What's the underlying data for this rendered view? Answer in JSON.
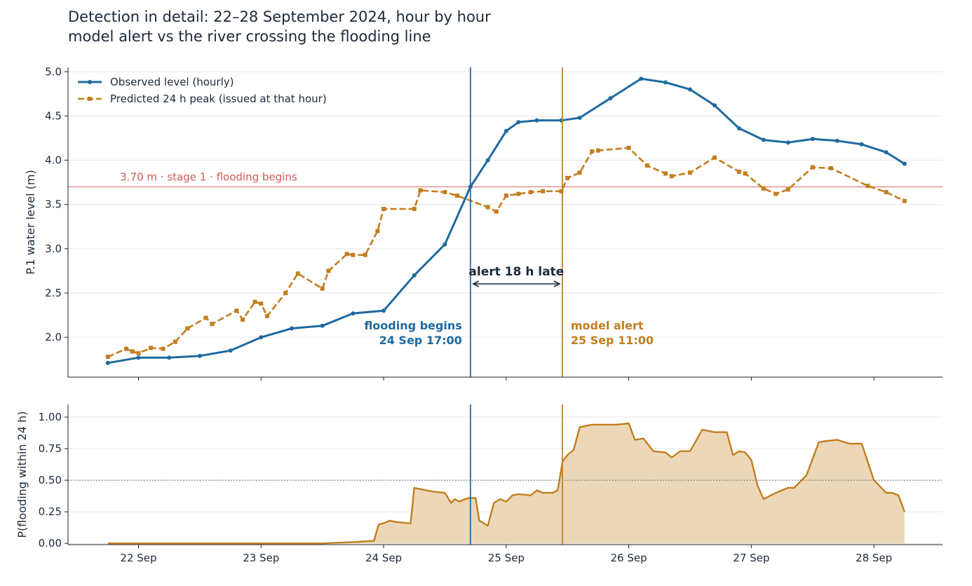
{
  "title_line1": "Detection in detail: 22–28 September 2024, hour by hour",
  "title_line2": "model alert vs the river crossing the flooding line",
  "colors": {
    "observed": "#1f6aa0",
    "predicted": "#c27e1e",
    "threshold": "#e3928f",
    "threshold_label": "#d05a55",
    "text": "#1b2a3a",
    "grid": "#e6e6e6",
    "prob_fill": "#ecd8b8"
  },
  "legend": {
    "observed_label": "Observed level (hourly)",
    "predicted_label": "Predicted 24 h peak (issued at that hour)"
  },
  "threshold": {
    "value": 3.7,
    "label": "3.70 m · stage 1 · flooding begins"
  },
  "events": {
    "flood_line1": "flooding begins",
    "flood_line2": "24 Sep 17:00",
    "flood_time": 2.708,
    "alert_line1": "model alert",
    "alert_line2": "25 Sep 11:00",
    "alert_time": 3.458,
    "gap_label": "alert 18 h late"
  },
  "prob_threshold": 0.5,
  "chart_data": [
    {
      "type": "line",
      "ylabel": "P.1 water level (m)",
      "xlabel": "",
      "ylim": [
        1.55,
        5.05
      ],
      "yticks": [
        "2.0",
        "2.5",
        "3.0",
        "3.5",
        "4.0",
        "4.5",
        "5.0"
      ],
      "xlim": [
        -0.575,
        6.56
      ],
      "xticks": [
        "22 Sep",
        "23 Sep",
        "24 Sep",
        "25 Sep",
        "26 Sep",
        "27 Sep",
        "28 Sep"
      ],
      "grid": "horizontal",
      "legend_position": "top-left",
      "series": [
        {
          "name": "Observed level (hourly)",
          "style": "solid line with circle markers",
          "x": [
            -0.25,
            0.0,
            0.25,
            0.5,
            0.75,
            1.0,
            1.25,
            1.5,
            1.75,
            2.0,
            2.25,
            2.5,
            2.708,
            2.85,
            3.0,
            3.1,
            3.25,
            3.45,
            3.6,
            3.85,
            4.1,
            4.3,
            4.5,
            4.7,
            4.9,
            5.1,
            5.3,
            5.5,
            5.7,
            5.9,
            6.1,
            6.25
          ],
          "y": [
            1.71,
            1.77,
            1.77,
            1.79,
            1.85,
            2.0,
            2.1,
            2.13,
            2.27,
            2.3,
            2.7,
            3.05,
            3.7,
            4.0,
            4.33,
            4.43,
            4.45,
            4.45,
            4.48,
            4.7,
            4.92,
            4.88,
            4.8,
            4.62,
            4.36,
            4.23,
            4.2,
            4.24,
            4.22,
            4.18,
            4.09,
            3.96
          ]
        },
        {
          "name": "Predicted 24 h peak (issued at that hour)",
          "style": "dashed line with square markers",
          "x": [
            -0.25,
            -0.1,
            -0.05,
            0.0,
            0.1,
            0.2,
            0.3,
            0.4,
            0.55,
            0.6,
            0.8,
            0.85,
            0.95,
            1.0,
            1.05,
            1.2,
            1.3,
            1.5,
            1.55,
            1.7,
            1.75,
            1.85,
            1.95,
            2.0,
            2.25,
            2.3,
            2.5,
            2.6,
            2.85,
            2.92,
            3.0,
            3.1,
            3.2,
            3.3,
            3.45,
            3.5,
            3.6,
            3.7,
            3.75,
            4.0,
            4.15,
            4.3,
            4.35,
            4.5,
            4.7,
            4.9,
            4.95,
            5.1,
            5.2,
            5.3,
            5.5,
            5.65,
            5.95,
            6.1,
            6.25
          ],
          "y": [
            1.78,
            1.87,
            1.84,
            1.82,
            1.88,
            1.87,
            1.95,
            2.1,
            2.22,
            2.15,
            2.3,
            2.2,
            2.4,
            2.38,
            2.24,
            2.5,
            2.72,
            2.55,
            2.75,
            2.94,
            2.93,
            2.93,
            3.2,
            3.45,
            3.45,
            3.66,
            3.64,
            3.6,
            3.47,
            3.42,
            3.6,
            3.62,
            3.64,
            3.65,
            3.65,
            3.8,
            3.86,
            4.1,
            4.11,
            4.14,
            3.94,
            3.85,
            3.82,
            3.86,
            4.03,
            3.87,
            3.85,
            3.68,
            3.62,
            3.67,
            3.92,
            3.91,
            3.71,
            3.64,
            3.54
          ]
        }
      ]
    },
    {
      "type": "area",
      "ylabel": "P(flooding within 24 h)",
      "xlabel": "",
      "ylim": [
        -0.01,
        1.1
      ],
      "yticks": [
        "0.00",
        "0.25",
        "0.50",
        "0.75",
        "1.00"
      ],
      "xlim": [
        -0.575,
        6.56
      ],
      "xticks": [
        "22 Sep",
        "23 Sep",
        "24 Sep",
        "25 Sep",
        "26 Sep",
        "27 Sep",
        "28 Sep"
      ],
      "grid": "horizontal",
      "series": [
        {
          "name": "",
          "x": [
            -0.25,
            0.5,
            1.0,
            1.5,
            1.75,
            1.92,
            1.96,
            2.0,
            2.05,
            2.1,
            2.2,
            2.22,
            2.25,
            2.4,
            2.5,
            2.55,
            2.58,
            2.62,
            2.66,
            2.7,
            2.75,
            2.78,
            2.8,
            2.85,
            2.9,
            2.95,
            3.0,
            3.05,
            3.1,
            3.2,
            3.25,
            3.3,
            3.38,
            3.42,
            3.46,
            3.5,
            3.55,
            3.6,
            3.7,
            3.8,
            3.9,
            4.0,
            4.05,
            4.12,
            4.2,
            4.3,
            4.35,
            4.42,
            4.5,
            4.6,
            4.7,
            4.75,
            4.8,
            4.85,
            4.9,
            4.95,
            5.0,
            5.05,
            5.1,
            5.2,
            5.3,
            5.35,
            5.45,
            5.55,
            5.6,
            5.7,
            5.8,
            5.9,
            6.0,
            6.1,
            6.15,
            6.2,
            6.25
          ],
          "y": [
            0.0,
            0.0,
            0.0,
            0.0,
            0.01,
            0.02,
            0.15,
            0.16,
            0.18,
            0.17,
            0.16,
            0.16,
            0.44,
            0.41,
            0.4,
            0.32,
            0.35,
            0.33,
            0.35,
            0.36,
            0.36,
            0.18,
            0.17,
            0.14,
            0.32,
            0.35,
            0.33,
            0.38,
            0.39,
            0.38,
            0.42,
            0.4,
            0.4,
            0.42,
            0.65,
            0.7,
            0.74,
            0.92,
            0.94,
            0.94,
            0.94,
            0.95,
            0.82,
            0.83,
            0.73,
            0.72,
            0.68,
            0.73,
            0.73,
            0.9,
            0.88,
            0.88,
            0.88,
            0.7,
            0.73,
            0.72,
            0.66,
            0.46,
            0.35,
            0.4,
            0.44,
            0.44,
            0.54,
            0.8,
            0.81,
            0.82,
            0.79,
            0.79,
            0.5,
            0.4,
            0.4,
            0.38,
            0.25
          ]
        }
      ]
    }
  ]
}
